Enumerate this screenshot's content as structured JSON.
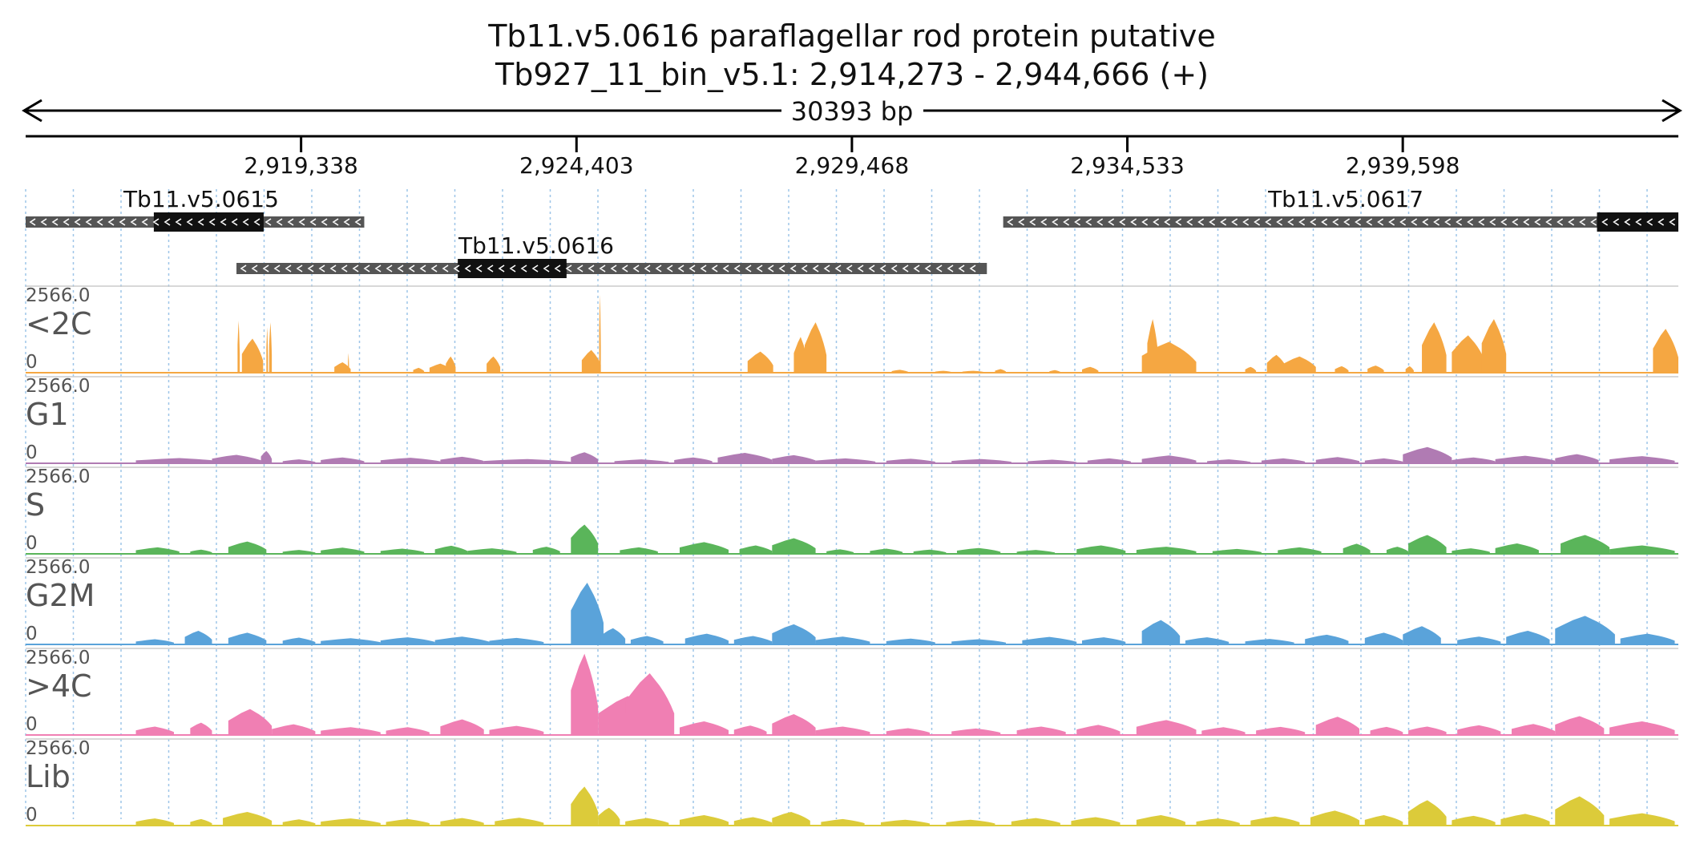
{
  "header": {
    "title": "Tb11.v5.0616  paraflagellar rod protein  putative",
    "locus": "Tb927_11_bin_v5.1: 2,914,273 - 2,944,666 (+)",
    "span_label": "30393 bp"
  },
  "chart_data": {
    "type": "area",
    "region": {
      "start": 2914273,
      "end": 2944666
    },
    "ticks": [
      {
        "pos": 2919338,
        "label": "2,919,338"
      },
      {
        "pos": 2924403,
        "label": "2,924,403"
      },
      {
        "pos": 2929468,
        "label": "2,929,468"
      },
      {
        "pos": 2934533,
        "label": "2,934,533"
      },
      {
        "pos": 2939598,
        "label": "2,939,598"
      }
    ],
    "genes": [
      {
        "name": "Tb11.v5.0615",
        "row": 0,
        "start": 2914273,
        "end": 2920500,
        "cds": [
          2916630,
          2918650
        ],
        "strand": "-"
      },
      {
        "name": "Tb11.v5.0616",
        "row": 1,
        "start": 2918150,
        "end": 2931950,
        "cds": [
          2922220,
          2924220
        ],
        "strand": "-"
      },
      {
        "name": "Tb11.v5.0617",
        "row": 0,
        "start": 2932250,
        "end": 2944666,
        "cds": [
          2943170,
          2944666
        ],
        "strand": "-"
      }
    ],
    "y_range": [
      0,
      2566.0
    ],
    "tracks": [
      {
        "name": "<2C",
        "color": "#f5a742",
        "max_label": "2566.0",
        "min_label": "0",
        "peaks": [
          [
            2918170,
            2918210,
            1600
          ],
          [
            2918250,
            2918640,
            1050
          ],
          [
            2918700,
            2918730,
            1400
          ],
          [
            2918750,
            2918800,
            1550
          ],
          [
            2919950,
            2920250,
            320
          ],
          [
            2920200,
            2920220,
            600
          ],
          [
            2921400,
            2921600,
            150
          ],
          [
            2921700,
            2922100,
            280
          ],
          [
            2922000,
            2922180,
            500
          ],
          [
            2922750,
            2923000,
            500
          ],
          [
            2924500,
            2924850,
            700
          ],
          [
            2924820,
            2924850,
            2400
          ],
          [
            2927550,
            2928020,
            650
          ],
          [
            2928400,
            2928650,
            1100
          ],
          [
            2928600,
            2929000,
            1550
          ],
          [
            2930200,
            2930500,
            90
          ],
          [
            2931000,
            2931300,
            60
          ],
          [
            2931500,
            2931900,
            60
          ],
          [
            2932100,
            2932300,
            110
          ],
          [
            2933100,
            2933300,
            80
          ],
          [
            2933700,
            2934000,
            180
          ],
          [
            2934800,
            2935800,
            950
          ],
          [
            2934900,
            2935100,
            1650
          ],
          [
            2936700,
            2936900,
            180
          ],
          [
            2937100,
            2937450,
            550
          ],
          [
            2937400,
            2938000,
            500
          ],
          [
            2938350,
            2938600,
            200
          ],
          [
            2938950,
            2939250,
            220
          ],
          [
            2939650,
            2939800,
            200
          ],
          [
            2939950,
            2940400,
            1550
          ],
          [
            2940500,
            2941100,
            1150
          ],
          [
            2941050,
            2941500,
            1650
          ],
          [
            2944200,
            2944666,
            1350
          ]
        ]
      },
      {
        "name": "G1",
        "color": "#b07bb3",
        "max_label": "2566.0",
        "min_label": "0",
        "peaks": [
          [
            2916300,
            2917900,
            160
          ],
          [
            2917700,
            2918600,
            260
          ],
          [
            2918600,
            2918800,
            380
          ],
          [
            2919000,
            2919600,
            120
          ],
          [
            2919700,
            2920500,
            180
          ],
          [
            2920800,
            2921900,
            170
          ],
          [
            2921900,
            2922700,
            200
          ],
          [
            2922700,
            2924300,
            130
          ],
          [
            2924300,
            2924800,
            340
          ],
          [
            2925100,
            2926100,
            120
          ],
          [
            2926200,
            2926900,
            180
          ],
          [
            2927000,
            2928000,
            320
          ],
          [
            2928000,
            2928800,
            250
          ],
          [
            2928800,
            2929900,
            150
          ],
          [
            2930100,
            2931000,
            140
          ],
          [
            2931300,
            2932400,
            130
          ],
          [
            2932700,
            2933600,
            110
          ],
          [
            2933800,
            2934600,
            150
          ],
          [
            2934800,
            2935800,
            240
          ],
          [
            2936000,
            2936800,
            120
          ],
          [
            2937000,
            2937800,
            150
          ],
          [
            2938000,
            2938800,
            190
          ],
          [
            2938900,
            2939600,
            150
          ],
          [
            2939600,
            2940500,
            500
          ],
          [
            2940500,
            2941300,
            180
          ],
          [
            2941300,
            2942400,
            230
          ],
          [
            2942400,
            2943200,
            280
          ],
          [
            2943400,
            2944600,
            220
          ]
        ]
      },
      {
        "name": "S",
        "color": "#5ab55a",
        "max_label": "2566.0",
        "min_label": "0",
        "peaks": [
          [
            2916300,
            2917100,
            200
          ],
          [
            2917300,
            2917700,
            130
          ],
          [
            2918000,
            2918700,
            380
          ],
          [
            2919000,
            2919600,
            120
          ],
          [
            2919700,
            2920500,
            190
          ],
          [
            2920800,
            2921600,
            160
          ],
          [
            2921800,
            2922400,
            250
          ],
          [
            2922400,
            2923300,
            170
          ],
          [
            2923600,
            2924100,
            220
          ],
          [
            2924300,
            2924800,
            900
          ],
          [
            2925200,
            2925900,
            200
          ],
          [
            2926300,
            2927200,
            360
          ],
          [
            2927400,
            2928000,
            260
          ],
          [
            2928000,
            2928800,
            480
          ],
          [
            2929000,
            2929500,
            140
          ],
          [
            2929800,
            2930400,
            160
          ],
          [
            2930600,
            2931200,
            130
          ],
          [
            2931400,
            2932200,
            180
          ],
          [
            2932500,
            2933200,
            120
          ],
          [
            2933600,
            2934500,
            260
          ],
          [
            2934700,
            2935800,
            220
          ],
          [
            2936100,
            2937000,
            150
          ],
          [
            2937300,
            2938100,
            200
          ],
          [
            2938500,
            2939000,
            310
          ],
          [
            2939300,
            2939700,
            220
          ],
          [
            2939700,
            2940400,
            580
          ],
          [
            2940500,
            2941200,
            170
          ],
          [
            2941300,
            2942100,
            320
          ],
          [
            2942500,
            2943400,
            580
          ],
          [
            2943400,
            2944600,
            260
          ]
        ]
      },
      {
        "name": "G2M",
        "color": "#5aa3da",
        "max_label": "2566.0",
        "min_label": "0",
        "peaks": [
          [
            2916300,
            2917000,
            160
          ],
          [
            2917200,
            2917700,
            420
          ],
          [
            2918000,
            2918700,
            360
          ],
          [
            2919000,
            2919600,
            210
          ],
          [
            2919700,
            2920800,
            190
          ],
          [
            2920800,
            2921800,
            220
          ],
          [
            2921800,
            2922800,
            240
          ],
          [
            2922800,
            2923800,
            200
          ],
          [
            2924300,
            2924900,
            1900
          ],
          [
            2924850,
            2925300,
            500
          ],
          [
            2925400,
            2926000,
            260
          ],
          [
            2926400,
            2927200,
            330
          ],
          [
            2927300,
            2928000,
            260
          ],
          [
            2928000,
            2928800,
            620
          ],
          [
            2928800,
            2929800,
            240
          ],
          [
            2930100,
            2931000,
            180
          ],
          [
            2931300,
            2932300,
            160
          ],
          [
            2932600,
            2933600,
            230
          ],
          [
            2933700,
            2934500,
            220
          ],
          [
            2934800,
            2935500,
            750
          ],
          [
            2935600,
            2936400,
            220
          ],
          [
            2936700,
            2937600,
            170
          ],
          [
            2937800,
            2938600,
            300
          ],
          [
            2938900,
            2939600,
            360
          ],
          [
            2939600,
            2940300,
            560
          ],
          [
            2940600,
            2941400,
            240
          ],
          [
            2941500,
            2942300,
            420
          ],
          [
            2942400,
            2943500,
            880
          ],
          [
            2943600,
            2944600,
            330
          ]
        ]
      },
      {
        "name": ">4C",
        "color": "#f07fb3",
        "max_label": "2566.0",
        "min_label": "0",
        "peaks": [
          [
            2916300,
            2917000,
            260
          ],
          [
            2917300,
            2917700,
            380
          ],
          [
            2918000,
            2918800,
            800
          ],
          [
            2918800,
            2919600,
            330
          ],
          [
            2919700,
            2920800,
            240
          ],
          [
            2920900,
            2921700,
            240
          ],
          [
            2921900,
            2922700,
            480
          ],
          [
            2922800,
            2923800,
            280
          ],
          [
            2924300,
            2924800,
            2500
          ],
          [
            2924800,
            2925900,
            1200
          ],
          [
            2925300,
            2926200,
            1900
          ],
          [
            2926300,
            2927200,
            420
          ],
          [
            2927300,
            2927900,
            290
          ],
          [
            2928000,
            2928800,
            640
          ],
          [
            2928800,
            2929800,
            260
          ],
          [
            2930100,
            2930900,
            210
          ],
          [
            2931300,
            2932200,
            200
          ],
          [
            2932500,
            2933400,
            260
          ],
          [
            2933600,
            2934400,
            310
          ],
          [
            2934700,
            2935800,
            460
          ],
          [
            2935900,
            2936700,
            240
          ],
          [
            2936900,
            2937800,
            250
          ],
          [
            2938000,
            2938800,
            560
          ],
          [
            2939000,
            2939600,
            250
          ],
          [
            2939700,
            2940400,
            260
          ],
          [
            2940600,
            2941400,
            300
          ],
          [
            2941600,
            2942400,
            340
          ],
          [
            2942400,
            2943300,
            580
          ],
          [
            2943400,
            2944600,
            420
          ]
        ]
      },
      {
        "name": "Lib",
        "color": "#dccb3a",
        "max_label": "2566.0",
        "min_label": "0",
        "peaks": [
          [
            2916300,
            2917000,
            220
          ],
          [
            2917300,
            2917700,
            200
          ],
          [
            2917900,
            2918800,
            420
          ],
          [
            2919000,
            2919600,
            190
          ],
          [
            2919700,
            2920800,
            220
          ],
          [
            2920900,
            2921700,
            200
          ],
          [
            2921900,
            2922700,
            230
          ],
          [
            2922900,
            2923800,
            240
          ],
          [
            2924300,
            2924800,
            1200
          ],
          [
            2924800,
            2925200,
            550
          ],
          [
            2925300,
            2926100,
            230
          ],
          [
            2926300,
            2927200,
            320
          ],
          [
            2927300,
            2928000,
            260
          ],
          [
            2928000,
            2928700,
            420
          ],
          [
            2928900,
            2929700,
            200
          ],
          [
            2930000,
            2930900,
            180
          ],
          [
            2931200,
            2932100,
            180
          ],
          [
            2932400,
            2933300,
            230
          ],
          [
            2933500,
            2934400,
            260
          ],
          [
            2934700,
            2935600,
            320
          ],
          [
            2935800,
            2936600,
            220
          ],
          [
            2936800,
            2937700,
            280
          ],
          [
            2937900,
            2938800,
            460
          ],
          [
            2938900,
            2939600,
            320
          ],
          [
            2939700,
            2940400,
            780
          ],
          [
            2940500,
            2941300,
            300
          ],
          [
            2941400,
            2942300,
            360
          ],
          [
            2942400,
            2943300,
            900
          ],
          [
            2943400,
            2944600,
            380
          ]
        ]
      }
    ]
  }
}
